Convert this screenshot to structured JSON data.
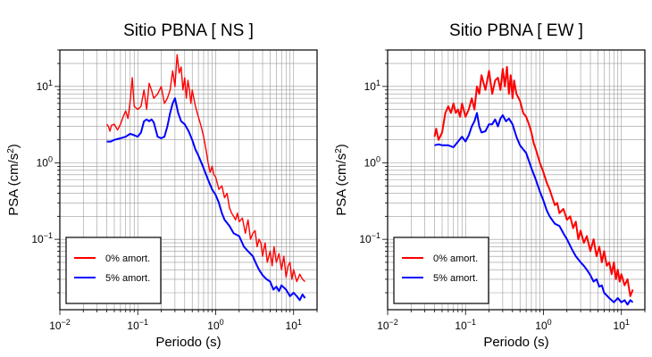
{
  "chart_data": [
    {
      "type": "line",
      "title": "Sitio PBNA [ NS ]",
      "xlabel": "Periodo (s)",
      "ylabel_main": "PSA (cm/s",
      "ylabel_sup": "2",
      "ylabel_end": ")",
      "xscale": "log",
      "yscale": "log",
      "xlim": [
        0.01,
        20
      ],
      "ylim": [
        0.012,
        30
      ],
      "grid": true,
      "legend_position": "bottom-left",
      "x_ticks": [
        {
          "value": 0.01,
          "base": "10",
          "exp": "−2"
        },
        {
          "value": 0.1,
          "base": "10",
          "exp": "−1"
        },
        {
          "value": 1,
          "base": "10",
          "exp": "0"
        },
        {
          "value": 10,
          "base": "10",
          "exp": "1"
        }
      ],
      "y_ticks": [
        {
          "value": 0.1,
          "base": "10",
          "exp": "−1"
        },
        {
          "value": 1,
          "base": "10",
          "exp": "0"
        },
        {
          "value": 10,
          "base": "10",
          "exp": "1"
        }
      ],
      "series": [
        {
          "name": "0% amort.",
          "color": "#ff0000",
          "width": 1.4,
          "x": [
            0.04,
            0.042,
            0.044,
            0.046,
            0.05,
            0.055,
            0.06,
            0.065,
            0.07,
            0.075,
            0.08,
            0.085,
            0.09,
            0.1,
            0.11,
            0.12,
            0.13,
            0.14,
            0.15,
            0.16,
            0.18,
            0.2,
            0.22,
            0.24,
            0.26,
            0.28,
            0.3,
            0.32,
            0.34,
            0.36,
            0.38,
            0.4,
            0.42,
            0.44,
            0.46,
            0.48,
            0.5,
            0.55,
            0.6,
            0.65,
            0.7,
            0.75,
            0.8,
            0.85,
            0.9,
            0.95,
            1.0,
            1.1,
            1.2,
            1.3,
            1.4,
            1.5,
            1.6,
            1.7,
            1.8,
            1.9,
            2.0,
            2.2,
            2.4,
            2.6,
            2.8,
            3.0,
            3.2,
            3.4,
            3.6,
            3.8,
            4.0,
            4.3,
            4.6,
            5.0,
            5.3,
            5.6,
            6.0,
            6.5,
            7.0,
            7.5,
            8.0,
            8.5,
            9.0,
            9.5,
            10,
            11,
            12,
            13,
            14
          ],
          "y": [
            3.2,
            3.0,
            2.6,
            3.1,
            3.2,
            2.7,
            3.2,
            4.0,
            4.8,
            3.8,
            6.5,
            13.0,
            5.5,
            5.0,
            5.5,
            9.0,
            5.0,
            11.0,
            9.0,
            7.0,
            8.0,
            10.0,
            6.0,
            7.0,
            9.0,
            16.0,
            10.0,
            26.0,
            15.0,
            18.0,
            9.0,
            13.0,
            7.0,
            12.0,
            9.0,
            6.0,
            9.0,
            5.5,
            4.0,
            3.0,
            2.2,
            1.5,
            1.0,
            0.75,
            0.9,
            0.7,
            0.65,
            0.45,
            0.5,
            0.35,
            0.4,
            0.26,
            0.22,
            0.2,
            0.18,
            0.22,
            0.17,
            0.19,
            0.12,
            0.18,
            0.1,
            0.12,
            0.13,
            0.08,
            0.1,
            0.09,
            0.06,
            0.09,
            0.05,
            0.07,
            0.045,
            0.08,
            0.05,
            0.065,
            0.04,
            0.06,
            0.032,
            0.045,
            0.05,
            0.03,
            0.04,
            0.028,
            0.035,
            0.03,
            0.028
          ]
        },
        {
          "name": "5% amort.",
          "color": "#0000ff",
          "width": 2,
          "x": [
            0.04,
            0.045,
            0.05,
            0.06,
            0.07,
            0.08,
            0.09,
            0.1,
            0.11,
            0.12,
            0.13,
            0.14,
            0.15,
            0.16,
            0.18,
            0.2,
            0.22,
            0.24,
            0.26,
            0.28,
            0.3,
            0.33,
            0.36,
            0.4,
            0.45,
            0.5,
            0.55,
            0.6,
            0.7,
            0.8,
            0.9,
            1.0,
            1.1,
            1.2,
            1.3,
            1.5,
            1.7,
            2.0,
            2.3,
            2.6,
            3.0,
            3.3,
            3.6,
            4.0,
            4.5,
            5.0,
            5.5,
            6.0,
            6.5,
            7.0,
            8.0,
            9.0,
            10,
            11,
            12,
            13,
            14
          ],
          "y": [
            1.9,
            1.9,
            2.0,
            2.1,
            2.2,
            2.4,
            2.3,
            2.2,
            2.5,
            3.5,
            3.7,
            3.5,
            3.7,
            3.4,
            2.2,
            2.1,
            2.2,
            3.0,
            4.5,
            6.0,
            7.0,
            4.5,
            3.5,
            3.2,
            2.6,
            2.0,
            1.5,
            1.25,
            0.85,
            0.6,
            0.45,
            0.38,
            0.3,
            0.22,
            0.18,
            0.15,
            0.12,
            0.11,
            0.08,
            0.07,
            0.06,
            0.048,
            0.04,
            0.034,
            0.03,
            0.028,
            0.022,
            0.024,
            0.021,
            0.025,
            0.022,
            0.018,
            0.02,
            0.018,
            0.016,
            0.019,
            0.017
          ]
        }
      ]
    },
    {
      "type": "line",
      "title": "Sitio PBNA [ EW ]",
      "xlabel": "Periodo (s)",
      "ylabel_main": "PSA (cm/s",
      "ylabel_sup": "2",
      "ylabel_end": ")",
      "xscale": "log",
      "yscale": "log",
      "xlim": [
        0.01,
        20
      ],
      "ylim": [
        0.012,
        30
      ],
      "grid": true,
      "legend_position": "bottom-left",
      "x_ticks": [
        {
          "value": 0.01,
          "base": "10",
          "exp": "−2"
        },
        {
          "value": 0.1,
          "base": "10",
          "exp": "−1"
        },
        {
          "value": 1,
          "base": "10",
          "exp": "0"
        },
        {
          "value": 10,
          "base": "10",
          "exp": "1"
        }
      ],
      "y_ticks": [
        {
          "value": 0.1,
          "base": "10",
          "exp": "−1"
        },
        {
          "value": 1,
          "base": "10",
          "exp": "0"
        },
        {
          "value": 10,
          "base": "10",
          "exp": "1"
        }
      ],
      "series": [
        {
          "name": "0% amort.",
          "color": "#ff0000",
          "width": 2,
          "x": [
            0.04,
            0.042,
            0.045,
            0.05,
            0.055,
            0.06,
            0.065,
            0.07,
            0.075,
            0.08,
            0.085,
            0.09,
            0.1,
            0.11,
            0.12,
            0.13,
            0.14,
            0.15,
            0.16,
            0.18,
            0.2,
            0.22,
            0.24,
            0.26,
            0.28,
            0.3,
            0.32,
            0.34,
            0.36,
            0.38,
            0.4,
            0.42,
            0.45,
            0.5,
            0.55,
            0.6,
            0.65,
            0.7,
            0.75,
            0.8,
            0.9,
            1.0,
            1.1,
            1.2,
            1.3,
            1.4,
            1.5,
            1.6,
            1.8,
            2.0,
            2.2,
            2.4,
            2.6,
            2.8,
            3.0,
            3.3,
            3.6,
            4.0,
            4.4,
            4.8,
            5.2,
            5.6,
            6.0,
            6.5,
            7.0,
            7.5,
            8.0,
            8.5,
            9.0,
            9.5,
            10,
            11,
            12,
            13,
            14
          ],
          "y": [
            2.2,
            2.8,
            2.0,
            2.5,
            4.5,
            5.5,
            4.5,
            6.0,
            4.5,
            5.0,
            4.0,
            6.0,
            4.0,
            5.0,
            7.0,
            5.0,
            10.0,
            8.0,
            14.0,
            9.0,
            16.0,
            8.0,
            12.0,
            13.0,
            9.0,
            17.0,
            10.0,
            18.0,
            8.0,
            14.0,
            7.0,
            12.0,
            8.0,
            6.5,
            4.5,
            4.0,
            3.2,
            2.5,
            1.8,
            1.5,
            1.0,
            0.75,
            0.55,
            0.45,
            0.35,
            0.28,
            0.3,
            0.22,
            0.25,
            0.18,
            0.2,
            0.14,
            0.17,
            0.1,
            0.13,
            0.09,
            0.11,
            0.07,
            0.1,
            0.06,
            0.08,
            0.05,
            0.07,
            0.045,
            0.05,
            0.035,
            0.05,
            0.03,
            0.04,
            0.028,
            0.035,
            0.025,
            0.03,
            0.018,
            0.022
          ]
        },
        {
          "name": "5% amort.",
          "color": "#0000ff",
          "width": 2,
          "x": [
            0.04,
            0.045,
            0.05,
            0.06,
            0.07,
            0.08,
            0.09,
            0.1,
            0.11,
            0.12,
            0.13,
            0.14,
            0.15,
            0.16,
            0.18,
            0.2,
            0.22,
            0.24,
            0.26,
            0.28,
            0.3,
            0.33,
            0.36,
            0.4,
            0.45,
            0.5,
            0.55,
            0.6,
            0.7,
            0.8,
            0.9,
            1.0,
            1.1,
            1.2,
            1.4,
            1.6,
            1.8,
            2.0,
            2.3,
            2.6,
            3.0,
            3.3,
            3.6,
            4.0,
            4.4,
            4.8,
            5.2,
            5.6,
            6.0,
            7.0,
            8.0,
            9.0,
            10,
            11,
            12,
            13,
            14
          ],
          "y": [
            1.7,
            1.75,
            1.7,
            1.7,
            1.6,
            1.9,
            2.2,
            1.9,
            2.3,
            3.0,
            3.5,
            4.5,
            3.0,
            2.5,
            2.6,
            3.2,
            3.2,
            3.7,
            3.0,
            3.8,
            4.2,
            3.5,
            3.8,
            3.2,
            2.2,
            1.7,
            1.5,
            1.35,
            0.85,
            0.6,
            0.42,
            0.32,
            0.24,
            0.2,
            0.16,
            0.15,
            0.12,
            0.1,
            0.075,
            0.06,
            0.05,
            0.045,
            0.04,
            0.034,
            0.028,
            0.03,
            0.024,
            0.025,
            0.02,
            0.017,
            0.015,
            0.017,
            0.015,
            0.016,
            0.014,
            0.016,
            0.015
          ]
        }
      ]
    }
  ]
}
